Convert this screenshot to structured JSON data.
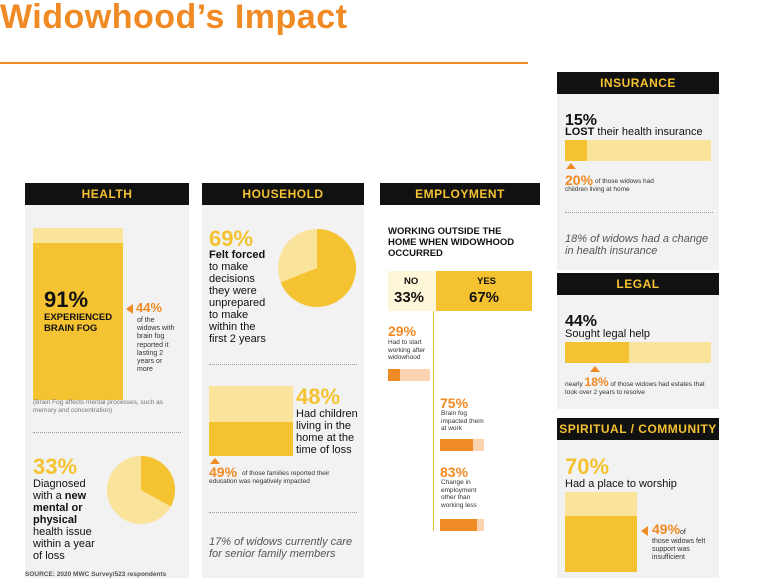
{
  "title": "Widowhood’s Impact",
  "colors": {
    "gold": "#f5c232",
    "light_gold": "#fae39a",
    "orange": "#f08a24",
    "peach": "#fbd3b0",
    "black": "#111111"
  },
  "health": {
    "header": "HEALTH",
    "brain_fog_pct": "91%",
    "brain_fog_label": "EXPERIENCED BRAIN FOG",
    "brain_fog_value": 91,
    "lasting_pct": "44%",
    "lasting_text": "of the widows with brain fog reported it lasting 2 years or more",
    "footnote": "(Brain Fog affects mental processes, such as memory and concentration)",
    "diagnosed_pct": "33%",
    "diagnosed_pre": "Diagnosed with a ",
    "diagnosed_bold": "new mental or physical",
    "diagnosed_post": " health issue within a year of loss",
    "diagnosed_value": 33
  },
  "household": {
    "header": "HOUSEHOLD",
    "forced_pct": "69%",
    "forced_bold": "Felt forced",
    "forced_text": "to make decisions they were unprepared to make within the first 2 years",
    "forced_value": 69,
    "children_pct": "48%",
    "children_text": "Had children living in the home at the time of loss",
    "children_value": 48,
    "education_pct": "49%",
    "education_text": "of those families reported their education was negatively impacted",
    "senior_care": "17% of widows currently care for senior family members"
  },
  "employment": {
    "header": "EMPLOYMENT",
    "subtitle": "WORKING OUTSIDE THE HOME WHEN WIDOWHOOD OCCURRED",
    "no_label": "NO",
    "no_pct": "33%",
    "no_value": 33,
    "yes_label": "YES",
    "yes_pct": "67%",
    "yes_value": 67,
    "start_pct": "29%",
    "start_text": "Had to start working after widowhood",
    "start_value": 29,
    "brainfog_work_pct": "75%",
    "brainfog_work_text": "Brain fog impacted them at work",
    "brainfog_work_value": 75,
    "change_pct": "83%",
    "change_text": "Change in employment other than working less",
    "change_value": 83
  },
  "insurance": {
    "header": "INSURANCE",
    "lost_pct": "15%",
    "lost_bold": "LOST",
    "lost_text": " their health insurance",
    "lost_value": 15,
    "children_pct": "20%",
    "children_text": "of those widows had children living at home",
    "change_text": "18% of widows had a change in health insurance"
  },
  "legal": {
    "header": "LEGAL",
    "help_pct": "44%",
    "help_text": "Sought legal help",
    "help_value": 44,
    "estates_pre": "nearly ",
    "estates_pct": "18%",
    "estates_text": "of those widows had estates that took over 2 years to resolve"
  },
  "spiritual": {
    "header": "SPIRITUAL / COMMUNITY",
    "worship_pct": "70%",
    "worship_text": "Had a place to worship",
    "worship_value": 70,
    "support_pct": "49%",
    "support_suffix": "of",
    "support_text": "those widows felt support was insufficient"
  },
  "source": "SOURCE: 2020 MWC Survey/523 respondents"
}
